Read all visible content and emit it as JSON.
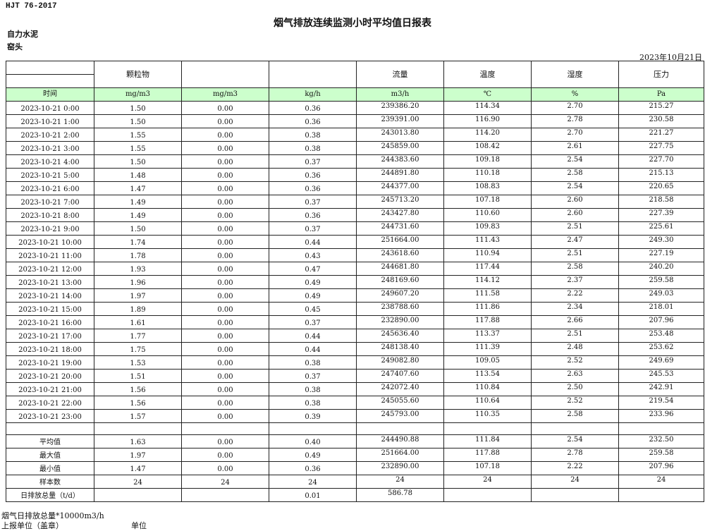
{
  "standard": "HJT  76-2017",
  "title": "烟气排放连续监测小时平均值日报表",
  "company": "自力水泥",
  "site": "窑头",
  "report_date": "2023年10月21日",
  "header": [
    "",
    "颗粒物",
    "",
    "",
    "流量",
    "温度",
    "湿度",
    "压力"
  ],
  "units": [
    "时间",
    "mg/m3",
    "mg/m3",
    "kg/h",
    "m3/h",
    "℃",
    "%",
    "Pa"
  ],
  "header_fill_color": "#ccffcc",
  "rows": [
    [
      "2023-10-21 0:00",
      "1.50",
      "0.00",
      "0.36",
      "239386.20",
      "114.34",
      "2.70",
      "215.27"
    ],
    [
      "2023-10-21 1:00",
      "1.50",
      "0.00",
      "0.36",
      "239391.00",
      "116.90",
      "2.78",
      "230.58"
    ],
    [
      "2023-10-21 2:00",
      "1.55",
      "0.00",
      "0.38",
      "243013.80",
      "114.20",
      "2.70",
      "221.27"
    ],
    [
      "2023-10-21 3:00",
      "1.55",
      "0.00",
      "0.38",
      "245859.00",
      "108.42",
      "2.61",
      "227.75"
    ],
    [
      "2023-10-21 4:00",
      "1.50",
      "0.00",
      "0.37",
      "244383.60",
      "109.18",
      "2.54",
      "227.70"
    ],
    [
      "2023-10-21 5:00",
      "1.48",
      "0.00",
      "0.36",
      "244891.80",
      "110.18",
      "2.58",
      "215.13"
    ],
    [
      "2023-10-21 6:00",
      "1.47",
      "0.00",
      "0.36",
      "244377.00",
      "108.83",
      "2.54",
      "220.65"
    ],
    [
      "2023-10-21 7:00",
      "1.49",
      "0.00",
      "0.37",
      "245713.20",
      "107.18",
      "2.60",
      "218.58"
    ],
    [
      "2023-10-21 8:00",
      "1.49",
      "0.00",
      "0.36",
      "243427.80",
      "110.60",
      "2.60",
      "227.39"
    ],
    [
      "2023-10-21 9:00",
      "1.50",
      "0.00",
      "0.37",
      "244731.60",
      "109.83",
      "2.51",
      "225.61"
    ],
    [
      "2023-10-21 10:00",
      "1.74",
      "0.00",
      "0.44",
      "251664.00",
      "111.43",
      "2.47",
      "249.30"
    ],
    [
      "2023-10-21 11:00",
      "1.78",
      "0.00",
      "0.43",
      "243618.60",
      "110.94",
      "2.51",
      "227.19"
    ],
    [
      "2023-10-21 12:00",
      "1.93",
      "0.00",
      "0.47",
      "244681.80",
      "117.44",
      "2.58",
      "240.20"
    ],
    [
      "2023-10-21 13:00",
      "1.96",
      "0.00",
      "0.49",
      "248169.60",
      "114.12",
      "2.37",
      "259.58"
    ],
    [
      "2023-10-21 14:00",
      "1.97",
      "0.00",
      "0.49",
      "249607.20",
      "111.58",
      "2.22",
      "249.03"
    ],
    [
      "2023-10-21 15:00",
      "1.89",
      "0.00",
      "0.45",
      "238788.60",
      "111.86",
      "2.34",
      "218.01"
    ],
    [
      "2023-10-21 16:00",
      "1.61",
      "0.00",
      "0.37",
      "232890.00",
      "117.88",
      "2.66",
      "207.96"
    ],
    [
      "2023-10-21 17:00",
      "1.77",
      "0.00",
      "0.44",
      "245636.40",
      "113.37",
      "2.51",
      "253.48"
    ],
    [
      "2023-10-21 18:00",
      "1.75",
      "0.00",
      "0.44",
      "248138.40",
      "111.39",
      "2.48",
      "253.62"
    ],
    [
      "2023-10-21 19:00",
      "1.53",
      "0.00",
      "0.38",
      "249082.80",
      "109.05",
      "2.52",
      "249.69"
    ],
    [
      "2023-10-21 20:00",
      "1.51",
      "0.00",
      "0.37",
      "247407.60",
      "113.54",
      "2.63",
      "245.53"
    ],
    [
      "2023-10-21 21:00",
      "1.56",
      "0.00",
      "0.38",
      "242072.40",
      "110.84",
      "2.50",
      "242.91"
    ],
    [
      "2023-10-21 22:00",
      "1.56",
      "0.00",
      "0.38",
      "245055.60",
      "110.64",
      "2.52",
      "219.54"
    ],
    [
      "2023-10-21 23:00",
      "1.57",
      "0.00",
      "0.39",
      "245793.00",
      "110.35",
      "2.58",
      "233.96"
    ]
  ],
  "stats": [
    [
      "平均值",
      "1.63",
      "0.00",
      "0.40",
      "244490.88",
      "111.84",
      "2.54",
      "232.50"
    ],
    [
      "最大值",
      "1.97",
      "0.00",
      "0.49",
      "251664.00",
      "117.88",
      "2.78",
      "259.58"
    ],
    [
      "最小值",
      "1.47",
      "0.00",
      "0.36",
      "232890.00",
      "107.18",
      "2.22",
      "207.96"
    ],
    [
      "样本数",
      "24",
      "24",
      "24",
      "24",
      "24",
      "24",
      "24"
    ],
    [
      "日排放总量（t/d）",
      "",
      "",
      "0.01",
      "586.78",
      "",
      "",
      ""
    ]
  ],
  "footer": {
    "note": "烟气日排放总量*10000m3/h",
    "reporter_label": "上报单位（盖章）",
    "unit_label": "单位"
  }
}
